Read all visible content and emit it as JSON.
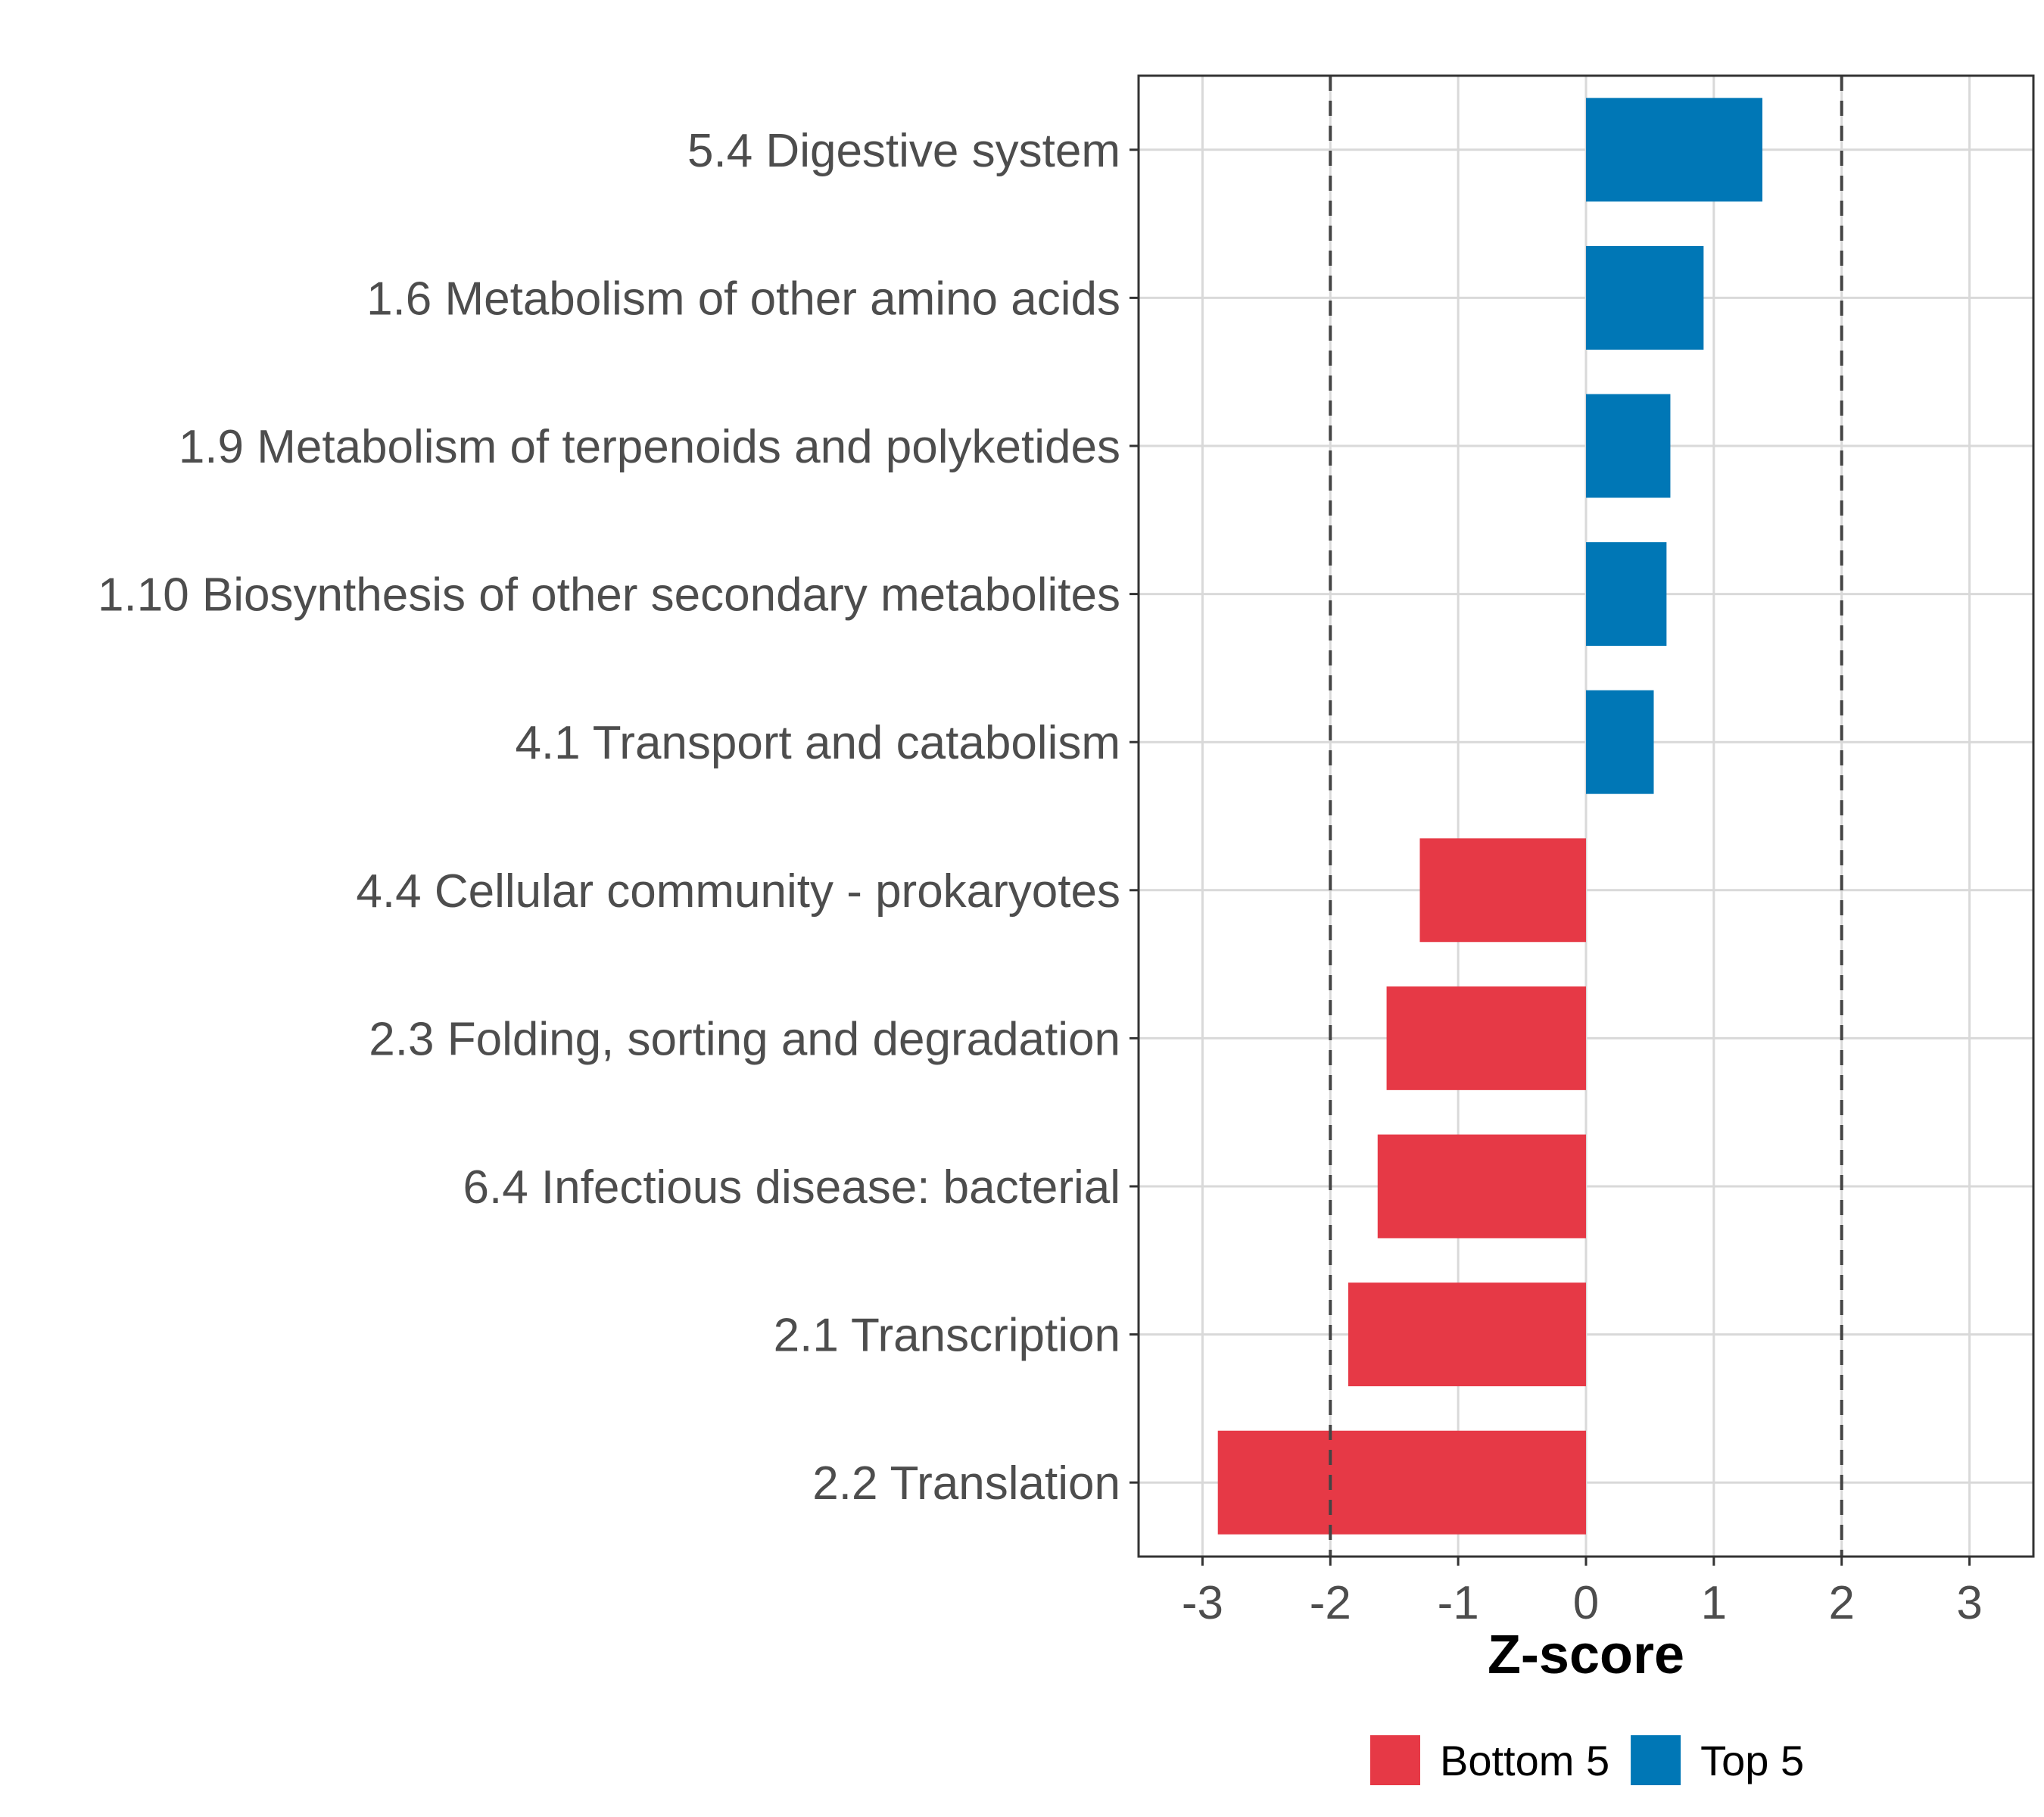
{
  "chart_data": {
    "type": "bar",
    "orientation": "horizontal",
    "title": "",
    "xlabel": "Z-score",
    "ylabel": "",
    "xlim": [
      -3.5,
      3.5
    ],
    "xticks": [
      -3,
      -2,
      -1,
      0,
      1,
      2,
      3
    ],
    "xtick_labels": [
      "-3",
      "-2",
      "-1",
      "0",
      "1",
      "2",
      "3"
    ],
    "reference_lines": [
      -2,
      2
    ],
    "grid": true,
    "categories": [
      "5.4 Digestive system",
      "1.6 Metabolism of other amino acids",
      "1.9 Metabolism of terpenoids and polyketides",
      "1.10 Biosynthesis of other secondary metabolites",
      "4.1 Transport and catabolism",
      "4.4 Cellular community - prokaryotes",
      "2.3 Folding, sorting and degradation",
      "6.4 Infectious disease: bacterial",
      "2.1 Transcription",
      "2.2 Translation"
    ],
    "values": [
      1.38,
      0.92,
      0.66,
      0.63,
      0.53,
      -1.3,
      -1.56,
      -1.63,
      -1.86,
      -2.88
    ],
    "groups": [
      "Top 5",
      "Top 5",
      "Top 5",
      "Top 5",
      "Top 5",
      "Bottom 5",
      "Bottom 5",
      "Bottom 5",
      "Bottom 5",
      "Bottom 5"
    ],
    "legend": {
      "position": "bottom",
      "entries": [
        {
          "label": "Bottom 5",
          "color": "#e63946"
        },
        {
          "label": "Top 5",
          "color": "#0077b6"
        }
      ]
    },
    "colors": {
      "Top 5": "#0077b6",
      "Bottom 5": "#e63946"
    }
  }
}
